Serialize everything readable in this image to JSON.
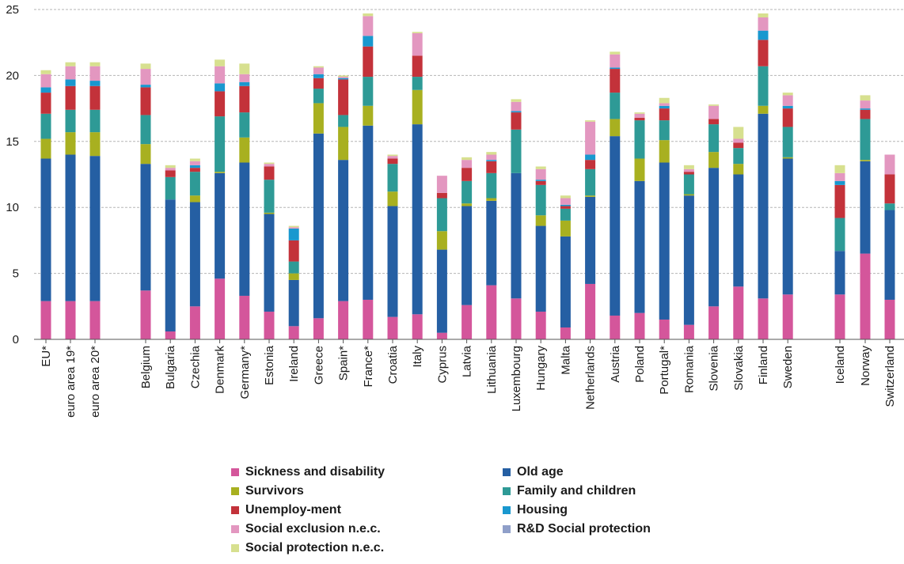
{
  "chart_data": {
    "type": "bar",
    "stacked": true,
    "title": "",
    "xlabel": "",
    "ylabel": "",
    "ylim": [
      0,
      25
    ],
    "yticks": [
      0,
      5,
      10,
      15,
      20,
      25
    ],
    "grid": true,
    "legend_position": "bottom",
    "categories": [
      "EU*",
      "euro area 19*",
      "euro area 20*",
      "Belgium",
      "Bulgaria",
      "Czechia",
      "Denmark",
      "Germany*",
      "Estonia",
      "Ireland",
      "Greece",
      "Spain*",
      "France*",
      "Croatia",
      "Italy",
      "Cyprus",
      "Latvia",
      "Lithuania",
      "Luxembourg",
      "Hungary",
      "Malta",
      "Netherlands",
      "Austria",
      "Poland",
      "Portugal*",
      "Romania",
      "Slovenia",
      "Slovakia",
      "Finland",
      "Sweden",
      "Iceland",
      "Norway",
      "Switzerland"
    ],
    "series": [
      {
        "name": "Sickness and disability",
        "color": "#d4569b",
        "values": [
          2.9,
          2.9,
          2.9,
          3.7,
          0.6,
          2.5,
          4.6,
          3.3,
          2.1,
          1.0,
          1.6,
          2.9,
          3.0,
          1.7,
          1.9,
          0.5,
          2.6,
          4.1,
          3.1,
          2.1,
          0.9,
          4.2,
          1.8,
          2.0,
          1.5,
          1.1,
          2.5,
          4.0,
          3.1,
          3.4,
          3.4,
          6.5,
          3.0
        ]
      },
      {
        "name": "Old age",
        "color": "#255fa3",
        "values": [
          10.8,
          11.1,
          11.0,
          9.6,
          10.0,
          7.9,
          8.0,
          10.1,
          7.4,
          3.5,
          14.0,
          10.7,
          13.2,
          8.4,
          14.4,
          6.3,
          7.5,
          6.4,
          9.5,
          6.5,
          6.9,
          6.6,
          13.6,
          10.0,
          11.9,
          9.8,
          10.5,
          8.5,
          14.0,
          10.3,
          3.3,
          7.0,
          6.8
        ]
      },
      {
        "name": "Survivors",
        "color": "#a8b020",
        "values": [
          1.5,
          1.7,
          1.8,
          1.5,
          0.0,
          0.5,
          0.1,
          1.9,
          0.1,
          0.5,
          2.3,
          2.5,
          1.5,
          1.1,
          2.6,
          1.4,
          0.2,
          0.2,
          0.0,
          0.8,
          1.2,
          0.1,
          1.3,
          1.7,
          1.7,
          0.1,
          1.2,
          0.8,
          0.6,
          0.1,
          0.0,
          0.1,
          0.0
        ]
      },
      {
        "name": "Family and children",
        "color": "#2e9a96",
        "values": [
          1.9,
          1.7,
          1.7,
          2.2,
          1.7,
          1.8,
          4.2,
          1.9,
          2.5,
          0.9,
          1.1,
          0.9,
          2.2,
          2.1,
          1.0,
          2.5,
          1.7,
          1.9,
          3.3,
          2.3,
          0.9,
          2.0,
          2.0,
          2.9,
          1.5,
          1.5,
          2.1,
          1.2,
          3.0,
          2.3,
          2.5,
          3.1,
          0.5
        ]
      },
      {
        "name": "Unemploy-ment",
        "color": "#c3323a",
        "values": [
          1.6,
          1.8,
          1.8,
          2.1,
          0.5,
          0.3,
          1.9,
          2.0,
          1.0,
          1.6,
          0.8,
          2.7,
          2.3,
          0.4,
          1.6,
          0.4,
          1.0,
          0.9,
          1.3,
          0.3,
          0.2,
          0.7,
          1.8,
          0.2,
          0.9,
          0.2,
          0.4,
          0.4,
          2.0,
          1.4,
          2.5,
          0.7,
          2.2
        ]
      },
      {
        "name": "Housing",
        "color": "#1998cf",
        "values": [
          0.4,
          0.5,
          0.4,
          0.2,
          0.0,
          0.2,
          0.6,
          0.3,
          0.0,
          0.9,
          0.3,
          0.1,
          0.8,
          0.0,
          0.0,
          0.0,
          0.0,
          0.1,
          0.1,
          0.1,
          0.1,
          0.4,
          0.1,
          0.0,
          0.2,
          0.0,
          0.0,
          0.0,
          0.7,
          0.2,
          0.3,
          0.1,
          0.0
        ]
      },
      {
        "name": "Social exclusion n.e.c.",
        "color": "#e397c0",
        "values": [
          1.0,
          1.0,
          1.1,
          1.2,
          0.2,
          0.3,
          1.3,
          0.6,
          0.2,
          0.1,
          0.5,
          0.1,
          1.5,
          0.2,
          1.7,
          1.3,
          0.6,
          0.4,
          0.7,
          0.8,
          0.5,
          2.5,
          1.0,
          0.3,
          0.2,
          0.2,
          1.0,
          0.3,
          1.0,
          0.8,
          0.6,
          0.6,
          1.5
        ]
      },
      {
        "name": "R&D Social protection",
        "color": "#8f9fc9",
        "values": [
          0.0,
          0.0,
          0.0,
          0.0,
          0.0,
          0.0,
          0.0,
          0.0,
          0.0,
          0.0,
          0.0,
          0.0,
          0.0,
          0.0,
          0.0,
          0.0,
          0.0,
          0.0,
          0.0,
          0.0,
          0.0,
          0.0,
          0.0,
          0.0,
          0.0,
          0.0,
          0.0,
          0.0,
          0.0,
          0.0,
          0.0,
          0.0,
          0.0
        ]
      },
      {
        "name": "Social protection n.e.c.",
        "color": "#d7e08f",
        "values": [
          0.3,
          0.3,
          0.3,
          0.4,
          0.2,
          0.2,
          0.5,
          0.8,
          0.1,
          0.1,
          0.1,
          0.1,
          0.2,
          0.1,
          0.1,
          0.0,
          0.2,
          0.2,
          0.2,
          0.2,
          0.2,
          0.1,
          0.2,
          0.1,
          0.4,
          0.3,
          0.1,
          0.9,
          0.3,
          0.2,
          0.6,
          0.4,
          0.0
        ]
      }
    ]
  }
}
